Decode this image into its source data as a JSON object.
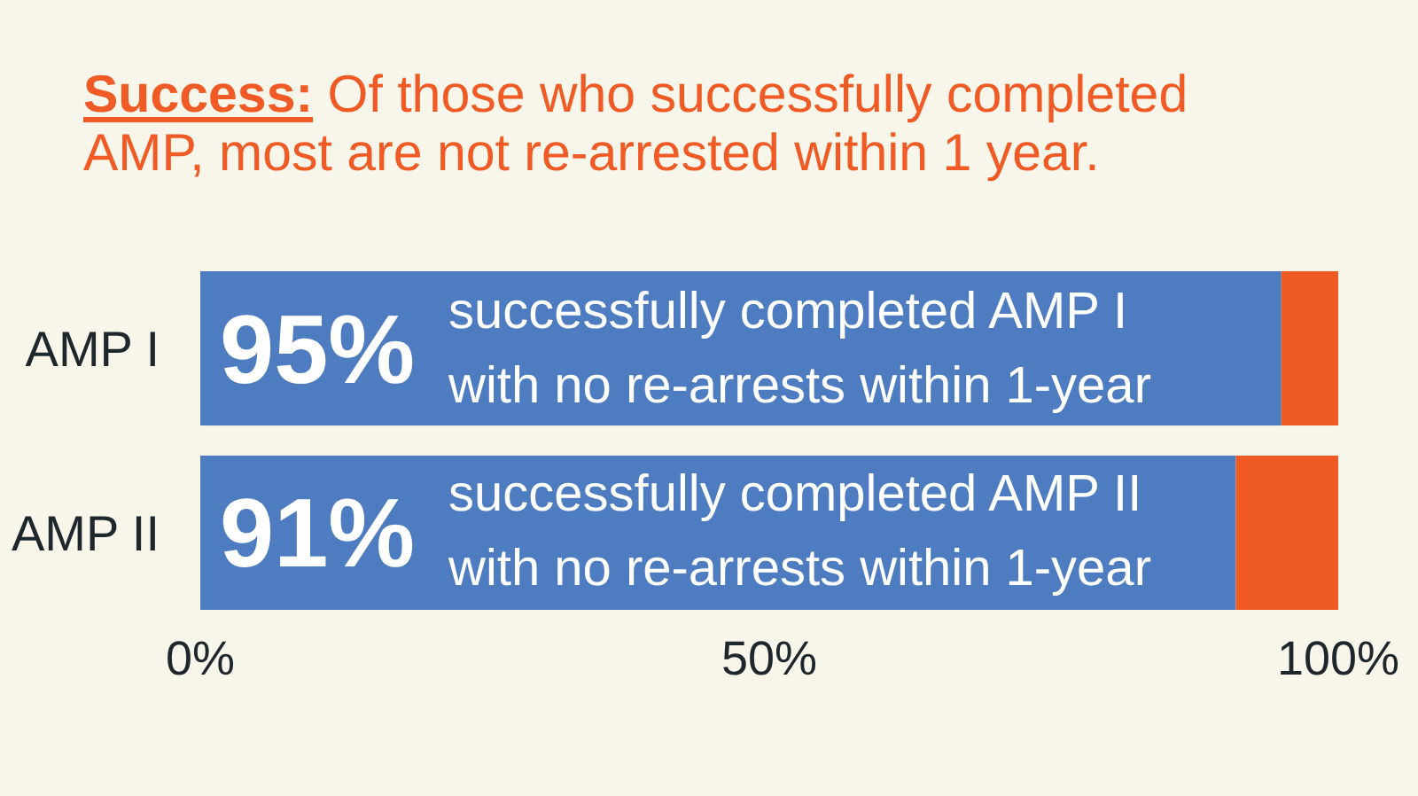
{
  "chart_data": {
    "type": "bar",
    "orientation": "horizontal",
    "stacked": true,
    "title": "Success: Of those who successfully completed AMP, most are not re-arrested within 1 year.",
    "categories": [
      "AMP I",
      "AMP II"
    ],
    "series": [
      {
        "color": "#4e7cc0",
        "values": [
          95,
          91
        ],
        "value_labels": [
          "95%",
          "91%"
        ]
      },
      {
        "color": "#f05a24",
        "values": [
          5,
          9
        ]
      }
    ],
    "xlim": [
      0,
      100
    ],
    "xticks": [
      {
        "value": 0,
        "label": "0%"
      },
      {
        "value": 50,
        "label": "50%"
      },
      {
        "value": 100,
        "label": "100%"
      }
    ],
    "annotations": [
      {
        "text": "successfully completed AMP I with no re-arrests within 1-year",
        "y": "AMP I"
      },
      {
        "text": "successfully completed AMP II with no re-arrests within 1-year",
        "y": "AMP II"
      }
    ],
    "grid": false
  }
}
